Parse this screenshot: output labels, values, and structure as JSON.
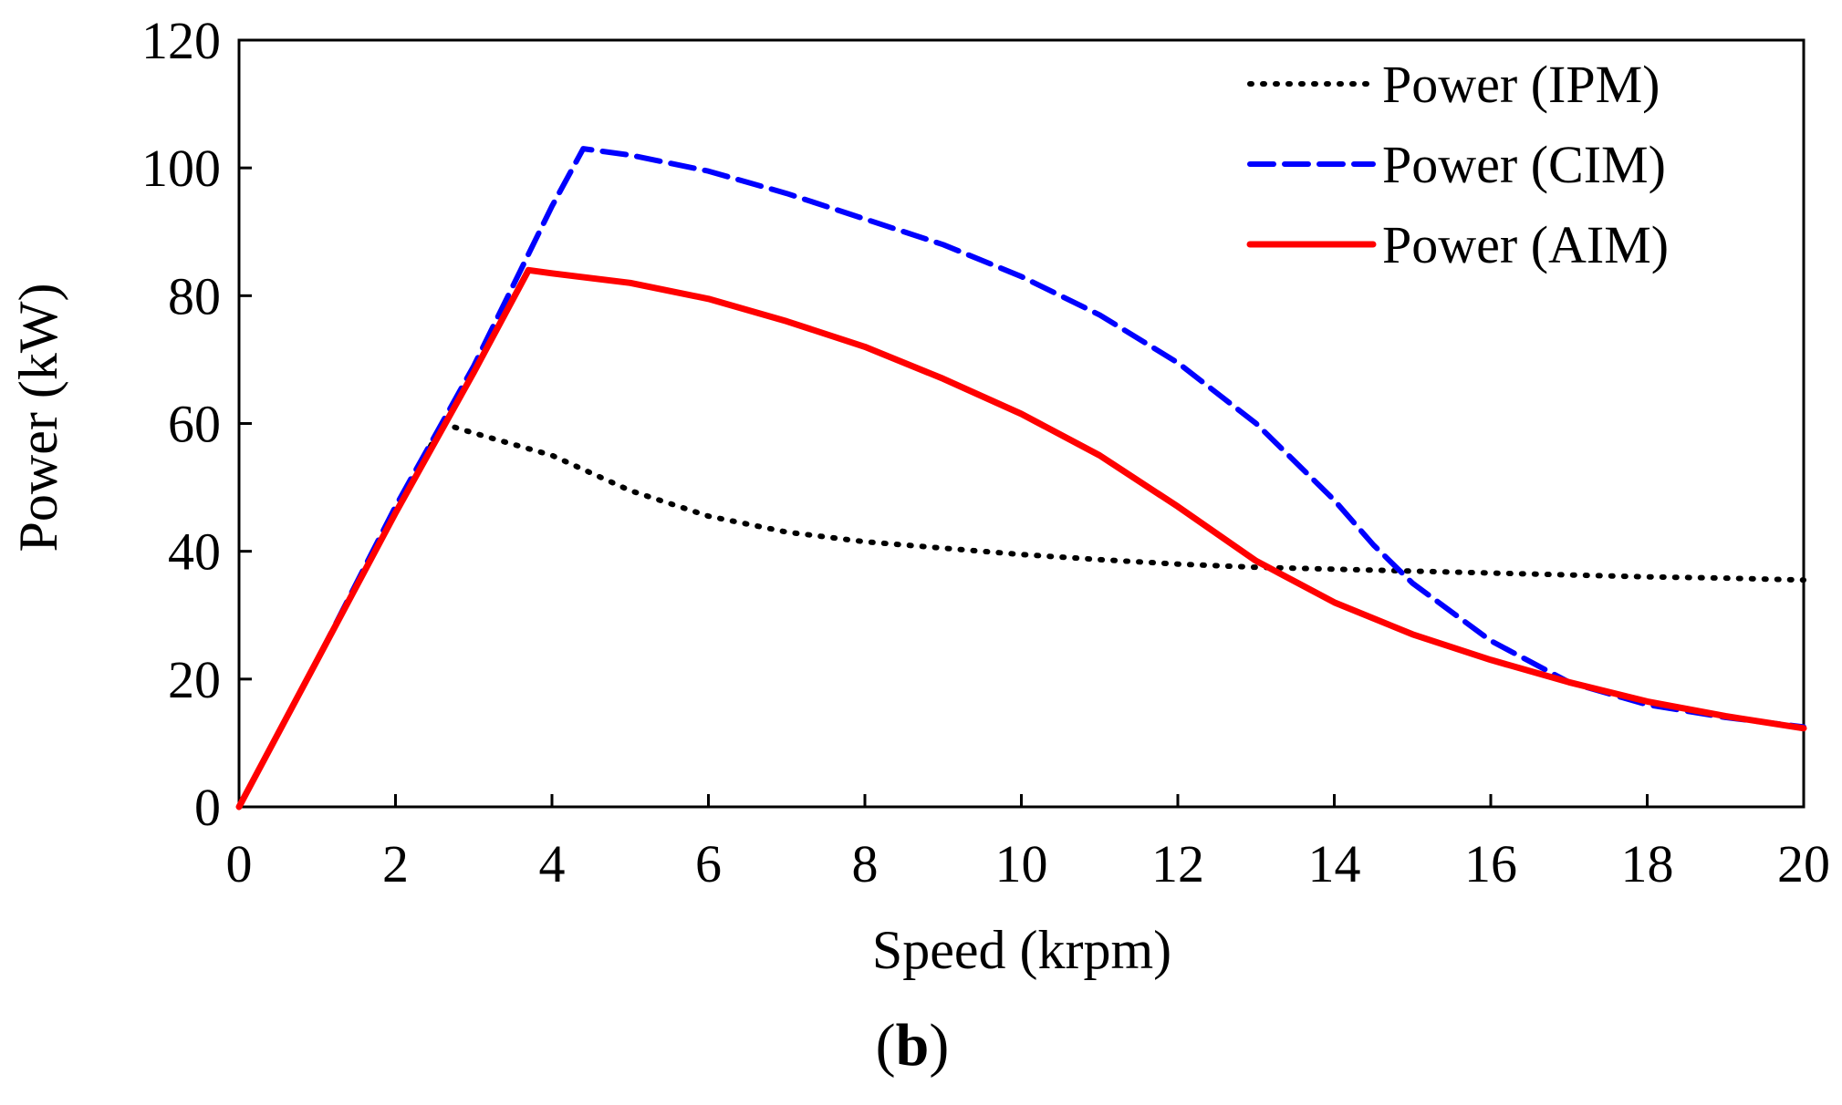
{
  "chart_data": {
    "type": "line",
    "xlabel": "Speed (krpm)",
    "ylabel": "Power (kW)",
    "xlim": [
      0,
      20
    ],
    "ylim": [
      0,
      120
    ],
    "xticks": [
      0,
      2,
      4,
      6,
      8,
      10,
      12,
      14,
      16,
      18,
      20
    ],
    "yticks": [
      0,
      20,
      40,
      60,
      80,
      100,
      120
    ],
    "grid": false,
    "legend_position": "top-right",
    "panel_label": {
      "open": "(",
      "letter": "b",
      "close": ")"
    },
    "series": [
      {
        "name": "Power (IPM)",
        "color": "#000000",
        "style": "dotted",
        "x": [
          0,
          1,
          2,
          2.6,
          3,
          4,
          5,
          6,
          7,
          8,
          9,
          10,
          11,
          12,
          13,
          14,
          15,
          16,
          17,
          18,
          19,
          20
        ],
        "y": [
          0,
          23,
          46,
          60,
          58.5,
          55,
          49.5,
          45.5,
          43,
          41.5,
          40.5,
          39.5,
          38.7,
          38,
          37.5,
          37.2,
          36.9,
          36.6,
          36.3,
          36.0,
          35.8,
          35.5
        ]
      },
      {
        "name": "Power (CIM)",
        "color": "#0000ff",
        "style": "dashed",
        "x": [
          0,
          1,
          2,
          3,
          3.6,
          4,
          4.4,
          5,
          6,
          7,
          8,
          9,
          10,
          11,
          12,
          13,
          14,
          14.5,
          15,
          16,
          17,
          18,
          19,
          20
        ],
        "y": [
          0,
          23,
          47,
          69,
          84,
          94,
          103,
          102,
          99.5,
          96,
          92,
          88,
          83,
          77,
          69.5,
          60,
          48,
          41,
          35,
          26,
          19.5,
          16,
          14,
          12.5
        ]
      },
      {
        "name": "Power (AIM)",
        "color": "#ff0000",
        "style": "solid",
        "x": [
          0,
          1,
          2,
          3,
          3.7,
          4,
          5,
          6,
          7,
          8,
          9,
          10,
          11,
          12,
          13,
          14,
          15,
          16,
          17,
          18,
          19,
          20
        ],
        "y": [
          0,
          23,
          46,
          68,
          84,
          83.5,
          82,
          79.5,
          76,
          72,
          67,
          61.5,
          55,
          47,
          38.5,
          32,
          27,
          23,
          19.5,
          16.5,
          14.2,
          12.3
        ]
      }
    ]
  }
}
